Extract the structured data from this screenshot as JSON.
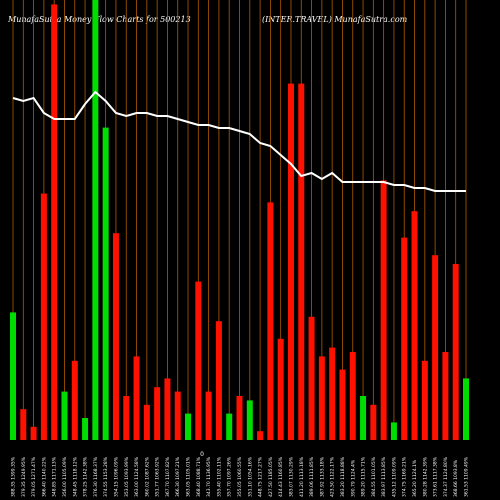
{
  "header": {
    "left_title": "MunafaSutra  Money Flow  Charts for 500213",
    "right_title": "(INTER.TRAVEL) MunafaSutra.com"
  },
  "chart_data": {
    "type": "bar",
    "title": "MunafaSutra  Money Flow  Charts for 500213",
    "subtitle": "(INTER.TRAVEL) MunafaSutra.com",
    "mid_label": "0",
    "colors": {
      "up": "#00dd00",
      "down": "#ff1100",
      "line": "#ffffff",
      "gridline": "#b05a00",
      "background": "#000000"
    },
    "ylim": [
      0,
      100
    ],
    "categories": [
      "388.35 1399.35%",
      "379.35 1249.95%",
      "379.05 1271.47%",
      "366.40 1140.22%",
      "348.85 1171.13%",
      "356.00 1105.09%",
      "348.45 1118.12%",
      "378.25 1142.38%",
      "376.30 1168.37%",
      "374.55 1153.28%",
      "354.15 1096.09%",
      "353.05 1093.99%",
      "363.00 1124.58%",
      "360.02 1087.62%",
      "351.77 1063.92%",
      "367.70 1107.82%",
      "366.30 1097.21%",
      "363.05 1105.01%",
      "368.40 1088.71%",
      "343.70 1136.95%",
      "355.40 1102.11%",
      "357.70 1097.26%",
      "355.05 1060.55%",
      "351.10 1054.16%",
      "448.75 1217.27%",
      "427.50 1185.05%",
      "414.43 1160.85%",
      "383.07 1130.29%",
      "411.20 1113.18%",
      "389.06 1111.85%",
      "387.92 1133.18%",
      "423.50 1122.17%",
      "383.20 1118.88%",
      "390.79 1124.4%",
      "389.20 1115.71%",
      "384.55 1101.05%",
      "383.97 1113.85%",
      "435.12 1109.09%",
      "374.75 1169.21%",
      "365.20 1124.1%",
      "380.28 1142.39%",
      "373.61 1117.38%",
      "374.37 1124.80%",
      "368.66 1093.8%",
      "361.53 1109.49%"
    ],
    "series": [
      {
        "values": [
          29,
          7,
          3,
          56,
          99,
          11,
          18,
          5,
          100,
          71,
          47,
          10,
          19,
          8,
          12,
          14,
          11,
          6,
          36,
          11,
          27,
          6,
          10,
          9,
          2,
          54,
          23,
          81,
          81,
          28,
          19,
          21,
          16,
          20,
          10,
          8,
          59,
          4,
          46,
          52,
          18,
          42,
          20,
          40,
          14
        ],
        "colors": [
          "up",
          "down",
          "down",
          "down",
          "down",
          "up",
          "down",
          "up",
          "up",
          "up",
          "down",
          "down",
          "down",
          "down",
          "down",
          "down",
          "down",
          "up",
          "down",
          "down",
          "down",
          "up",
          "down",
          "up",
          "down",
          "down",
          "down",
          "down",
          "down",
          "down",
          "down",
          "down",
          "down",
          "down",
          "up",
          "down",
          "down",
          "up",
          "down",
          "down",
          "down",
          "down",
          "down",
          "down",
          "up"
        ]
      },
      {
        "name": "price",
        "values": [
          94,
          93,
          94,
          89,
          87,
          87,
          87,
          92,
          96,
          93,
          89,
          88,
          89,
          89,
          88,
          88,
          87,
          86,
          85,
          85,
          84,
          84,
          83,
          82,
          79,
          78,
          75,
          72,
          68,
          69,
          67,
          69,
          66,
          66,
          66,
          66,
          66,
          65,
          65,
          64,
          64,
          63,
          63,
          63,
          63
        ]
      }
    ]
  }
}
